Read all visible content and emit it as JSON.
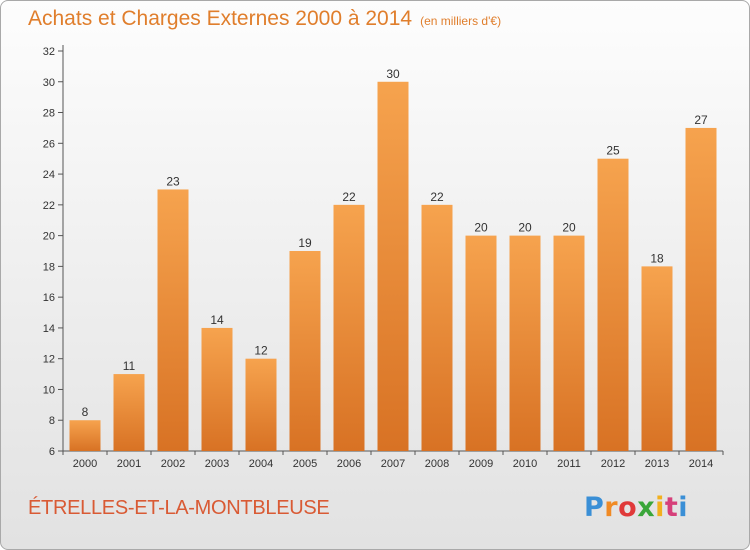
{
  "header": {
    "title": "Achats et Charges Externes 2000 à 2014",
    "unit": "(en milliers d'€)"
  },
  "footer": {
    "commune": "ÉTRELLES-ET-LA-MONTBLEUSE",
    "logo_text": "Proxiti",
    "logo_colors": [
      "#3a8fd6",
      "#f08a24",
      "#e03a3a",
      "#3aa63a",
      "#f2b01e",
      "#d6407a",
      "#3a8fd6"
    ]
  },
  "chart_data": {
    "type": "bar",
    "title": "Achats et Charges Externes 2000 à 2014",
    "subtitle": "(en milliers d'€)",
    "categories": [
      "2000",
      "2001",
      "2002",
      "2003",
      "2004",
      "2005",
      "2006",
      "2007",
      "2008",
      "2009",
      "2010",
      "2011",
      "2012",
      "2013",
      "2014"
    ],
    "values": [
      8,
      11,
      23,
      14,
      12,
      19,
      22,
      30,
      22,
      20,
      20,
      20,
      25,
      18,
      27
    ],
    "ylim": [
      6,
      32
    ],
    "yticks": [
      6,
      8,
      10,
      12,
      14,
      16,
      18,
      20,
      22,
      24,
      26,
      28,
      30,
      32
    ],
    "grid": false,
    "bar_color_top": "#f6a34e",
    "bar_color_bottom": "#d87224"
  }
}
